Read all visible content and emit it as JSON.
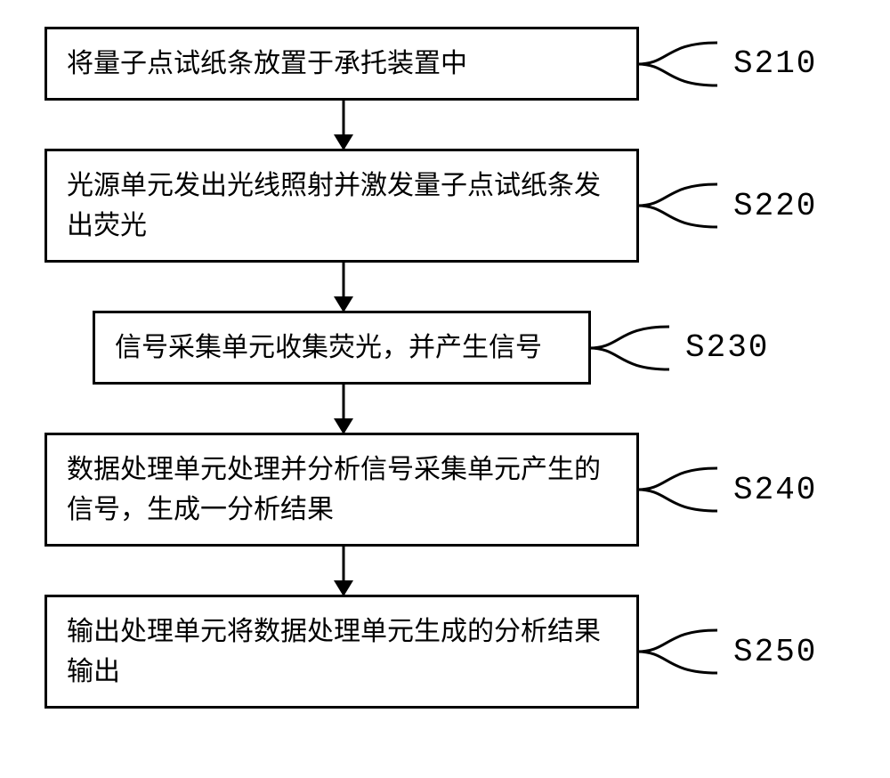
{
  "diagram": {
    "box_border_color": "#000000",
    "box_border_width": 3,
    "background_color": "#ffffff",
    "text_color": "#000000",
    "box_font_size": 30,
    "label_font_size": 36,
    "label_font_family": "monospace",
    "arrow_length": 54,
    "box_width_wide": 668,
    "box_width_narrow": 560,
    "box_offset_narrow": 54,
    "curve_width": 90,
    "label_gap": 18,
    "steps": [
      {
        "text": "将量子点试纸条放置于承托装置中",
        "label": "S210",
        "wide": true
      },
      {
        "text": "光源单元发出光线照射并激发量子点试纸条发出荧光",
        "label": "S220",
        "wide": true
      },
      {
        "text": "信号采集单元收集荧光，并产生信号",
        "label": "S230",
        "wide": false
      },
      {
        "text": "数据处理单元处理并分析信号采集单元产生的信号，生成一分析结果",
        "label": "S240",
        "wide": true
      },
      {
        "text": "输出处理单元将数据处理单元生成的分析结果输出",
        "label": "S250",
        "wide": true
      }
    ]
  }
}
